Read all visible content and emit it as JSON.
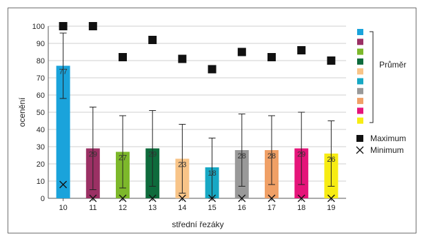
{
  "chart_data": {
    "type": "bar",
    "title": "",
    "xlabel": "střední řezáky",
    "ylabel": "ocenění",
    "ylim": [
      0,
      100
    ],
    "yticks": [
      0,
      10,
      20,
      30,
      40,
      50,
      60,
      70,
      80,
      90,
      100
    ],
    "grid": true,
    "categories": [
      "10",
      "11",
      "12",
      "13",
      "14",
      "15",
      "16",
      "17",
      "18",
      "19"
    ],
    "series": [
      {
        "name": "Průměr",
        "values": [
          77,
          29,
          27,
          29,
          23,
          18,
          28,
          28,
          29,
          26
        ],
        "error_low": [
          58,
          5,
          6,
          7,
          3,
          0,
          7,
          8,
          8,
          7
        ],
        "error_high": [
          96,
          53,
          48,
          51,
          43,
          35,
          49,
          48,
          50,
          45
        ],
        "colors": [
          "#1aa3db",
          "#9b3064",
          "#7db82b",
          "#0e6b3c",
          "#f8c488",
          "#17a8c4",
          "#999999",
          "#f0a066",
          "#e5157a",
          "#f7ec13"
        ]
      },
      {
        "name": "Maximum",
        "marker": "square",
        "values": [
          100,
          100,
          82,
          92,
          81,
          75,
          85,
          82,
          86,
          80
        ]
      },
      {
        "name": "Minimum",
        "marker": "x",
        "values": [
          8,
          0,
          0,
          0,
          0,
          0,
          0,
          0,
          0,
          0
        ]
      }
    ],
    "legend": {
      "placement": "right",
      "group_label": "Průměr",
      "items": [
        "Maximum",
        "Minimum"
      ]
    }
  }
}
